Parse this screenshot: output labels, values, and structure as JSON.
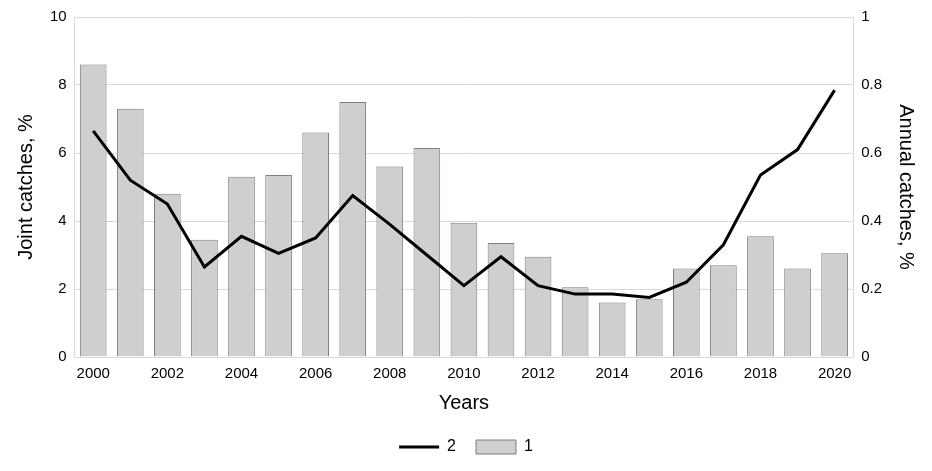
{
  "chart_data": {
    "type": "bar",
    "x_label": "Years",
    "y_label": "Joint catches, %",
    "y2_label": "Annual catches, %",
    "categories": [
      "2000",
      null,
      "2002",
      null,
      "2004",
      null,
      "2006",
      null,
      "2008",
      null,
      "2010",
      null,
      "2012",
      null,
      "2014",
      null,
      "2016",
      null,
      "2018",
      null,
      "2020"
    ],
    "series": [
      {
        "name": "1",
        "type": "bar",
        "color": "#d0cece",
        "values": [
          8.6,
          7.3,
          4.8,
          3.45,
          5.3,
          5.35,
          6.6,
          7.5,
          5.6,
          6.15,
          3.95,
          3.35,
          2.95,
          2.05,
          1.6,
          1.7,
          2.6,
          2.7,
          3.55,
          2.6,
          3.05
        ]
      },
      {
        "name": "2",
        "type": "line",
        "color": "#000000",
        "axis": "y2",
        "values": [
          0.665,
          0.52,
          0.45,
          0.265,
          0.355,
          0.305,
          0.35,
          0.475,
          0.39,
          0.3,
          0.21,
          0.295,
          0.21,
          0.185,
          0.185,
          0.175,
          0.22,
          0.33,
          0.535,
          0.61,
          0.785
        ]
      }
    ],
    "ylim": [
      0,
      10
    ],
    "yticks": [
      0,
      2,
      4,
      6,
      8,
      10
    ],
    "y2lim": [
      0,
      1
    ],
    "y2ticks": [
      0,
      0.2,
      0.4,
      0.6,
      0.8,
      1
    ],
    "grid": true,
    "legend": "bottom"
  }
}
